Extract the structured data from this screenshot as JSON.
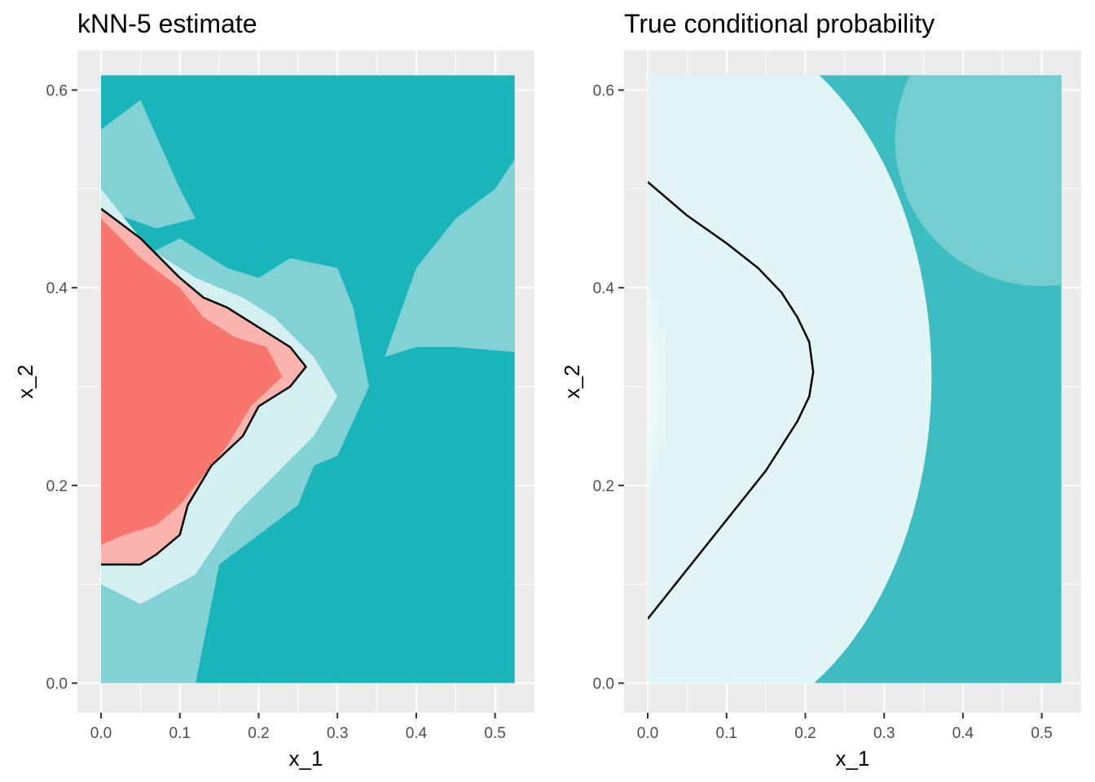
{
  "chart_data": [
    {
      "type": "heatmap",
      "title": "kNN-5 estimate",
      "xlabel": "x_1",
      "ylabel": "x_2",
      "xlim": [
        -0.03,
        0.55
      ],
      "ylim": [
        -0.03,
        0.64
      ],
      "x_ticks": [
        "0.0",
        "0.1",
        "0.2",
        "0.3",
        "0.4",
        "0.5"
      ],
      "y_ticks": [
        "0.0",
        "0.2",
        "0.4",
        "0.6"
      ],
      "x_tick_values": [
        0.0,
        0.1,
        0.2,
        0.3,
        0.4,
        0.5
      ],
      "y_tick_values": [
        0.0,
        0.2,
        0.4,
        0.6
      ],
      "data_extent": {
        "x": [
          0.0,
          0.525
        ],
        "y": [
          0.0,
          0.615
        ]
      },
      "grid": true,
      "colors": {
        "low": "#1AB5BB",
        "mid": "#FFFFFF",
        "high": "#F8766D",
        "panel": "#EBEBEB",
        "grid": "#FFFFFF"
      },
      "decision_boundary": "0.5 contour (black line)",
      "red_region_points": [
        [
          0.0,
          0.48
        ],
        [
          0.05,
          0.45
        ],
        [
          0.1,
          0.41
        ],
        [
          0.13,
          0.39
        ],
        [
          0.16,
          0.38
        ],
        [
          0.2,
          0.36
        ],
        [
          0.24,
          0.34
        ],
        [
          0.26,
          0.32
        ],
        [
          0.24,
          0.3
        ],
        [
          0.2,
          0.28
        ],
        [
          0.18,
          0.25
        ],
        [
          0.14,
          0.22
        ],
        [
          0.11,
          0.18
        ],
        [
          0.1,
          0.15
        ],
        [
          0.07,
          0.13
        ],
        [
          0.05,
          0.12
        ],
        [
          0.0,
          0.12
        ]
      ]
    },
    {
      "type": "heatmap",
      "title": "True conditional probability",
      "xlabel": "x_1",
      "ylabel": "x_2",
      "xlim": [
        -0.03,
        0.55
      ],
      "ylim": [
        -0.03,
        0.64
      ],
      "x_ticks": [
        "0.0",
        "0.1",
        "0.2",
        "0.3",
        "0.4",
        "0.5"
      ],
      "y_ticks": [
        "0.0",
        "0.2",
        "0.4",
        "0.6"
      ],
      "x_tick_values": [
        0.0,
        0.1,
        0.2,
        0.3,
        0.4,
        0.5
      ],
      "y_tick_values": [
        0.0,
        0.2,
        0.4,
        0.6
      ],
      "data_extent": {
        "x": [
          0.0,
          0.525
        ],
        "y": [
          0.0,
          0.615
        ]
      },
      "grid": true,
      "colors": {
        "low": "#1AB5BB",
        "mid": "#FFFFFF",
        "high": "#F8766D",
        "panel": "#EBEBEB",
        "grid": "#FFFFFF"
      },
      "decision_boundary": "0.5 contour (black line)",
      "boundary_points": [
        [
          0.0,
          0.507
        ],
        [
          0.05,
          0.473
        ],
        [
          0.1,
          0.445
        ],
        [
          0.14,
          0.42
        ],
        [
          0.17,
          0.395
        ],
        [
          0.19,
          0.37
        ],
        [
          0.205,
          0.345
        ],
        [
          0.21,
          0.315
        ],
        [
          0.205,
          0.29
        ],
        [
          0.19,
          0.265
        ],
        [
          0.17,
          0.24
        ],
        [
          0.15,
          0.215
        ],
        [
          0.12,
          0.185
        ],
        [
          0.09,
          0.155
        ],
        [
          0.06,
          0.125
        ],
        [
          0.03,
          0.095
        ],
        [
          0.0,
          0.065
        ]
      ]
    }
  ]
}
